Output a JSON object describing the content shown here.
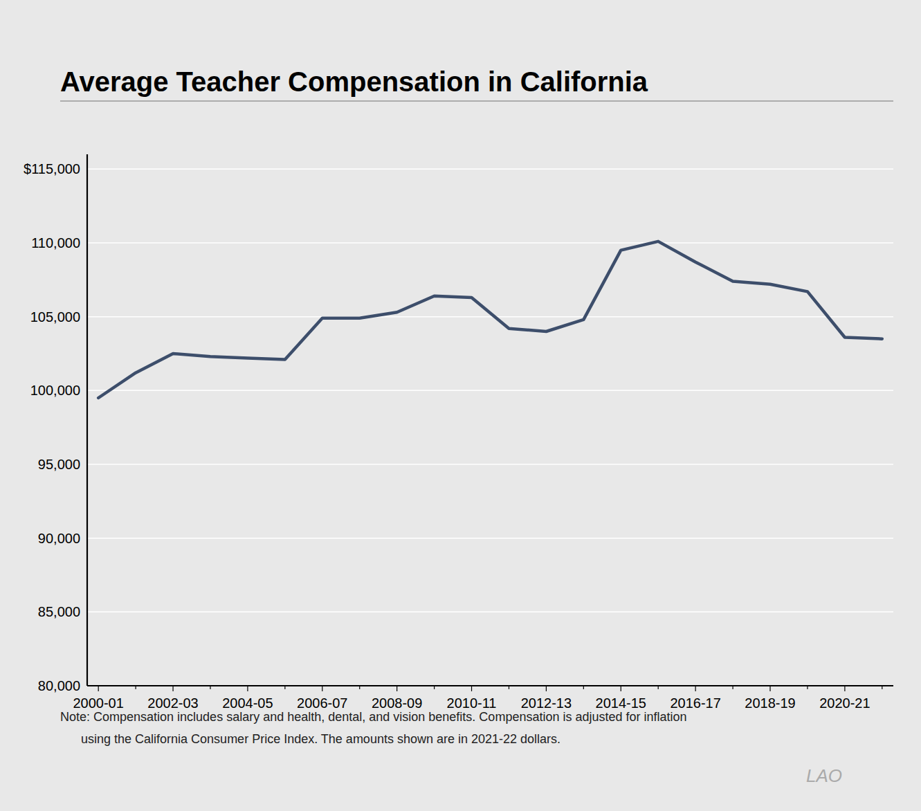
{
  "chart_data": {
    "type": "line",
    "title": "Average Teacher Compensation in California",
    "categories": [
      "2000-01",
      null,
      "2002-03",
      null,
      "2004-05",
      null,
      "2006-07",
      null,
      "2008-09",
      null,
      "2010-11",
      null,
      "2012-13",
      null,
      "2014-15",
      null,
      "2016-17",
      null,
      "2018-19",
      null,
      "2020-21",
      null
    ],
    "values": [
      99500,
      101200,
      102500,
      102300,
      102200,
      102100,
      104900,
      104900,
      105300,
      106400,
      106300,
      104200,
      104000,
      104800,
      109500,
      110100,
      108700,
      107400,
      107200,
      106700,
      103600,
      103500
    ],
    "color": "#3d4e6b",
    "ylim": [
      80000,
      116000
    ],
    "yticks": [
      {
        "value": 80000,
        "label": "80,000"
      },
      {
        "value": 85000,
        "label": "85,000"
      },
      {
        "value": 90000,
        "label": "90,000"
      },
      {
        "value": 95000,
        "label": "95,000"
      },
      {
        "value": 100000,
        "label": "100,000"
      },
      {
        "value": 105000,
        "label": "105,000"
      },
      {
        "value": 110000,
        "label": "110,000"
      },
      {
        "value": 115000,
        "label": "$115,000"
      }
    ],
    "grid": true,
    "annotations": [
      "Note: Compensation includes salary and health, dental, and vision benefits. Compensation is adjusted for inflation",
      "      using the California Consumer Price Index. The amounts shown are in 2021-22 dollars.",
      "LAO"
    ]
  }
}
